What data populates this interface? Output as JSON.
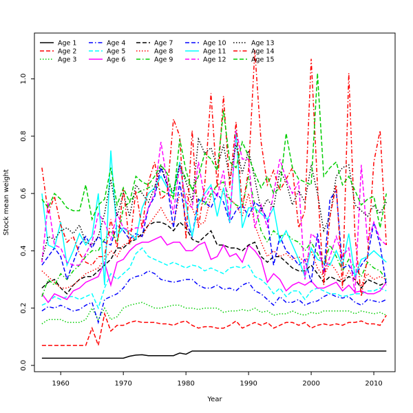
{
  "chart_data": {
    "type": "line",
    "title": "",
    "xlabel": "Year",
    "ylabel": "Stock mean weight",
    "xlim": [
      1955.8,
      2013.4
    ],
    "ylim": [
      -0.022,
      1.16
    ],
    "xticks": [
      1960,
      1970,
      1980,
      1990,
      2000,
      2010
    ],
    "yticks": [
      0.0,
      0.2,
      0.4,
      0.6,
      0.8,
      1.0
    ],
    "yticklabels": [
      "0.0",
      "0.2",
      "0.4",
      "0.6",
      "0.8",
      "1.0"
    ],
    "grid": false,
    "legend_position": "top-left",
    "x": [
      1957,
      1958,
      1959,
      1960,
      1961,
      1962,
      1963,
      1964,
      1965,
      1966,
      1967,
      1968,
      1969,
      1970,
      1971,
      1972,
      1973,
      1974,
      1975,
      1976,
      1977,
      1978,
      1979,
      1980,
      1981,
      1982,
      1983,
      1984,
      1985,
      1986,
      1987,
      1988,
      1989,
      1990,
      1991,
      1992,
      1993,
      1994,
      1995,
      1996,
      1997,
      1998,
      1999,
      2000,
      2001,
      2002,
      2003,
      2004,
      2005,
      2006,
      2007,
      2008,
      2009,
      2010,
      2011,
      2012
    ],
    "series": [
      {
        "name": "Age 1",
        "color": "#000000",
        "dash": "solid",
        "values": [
          0.025,
          0.025,
          0.025,
          0.025,
          0.025,
          0.025,
          0.025,
          0.025,
          0.025,
          0.025,
          0.025,
          0.025,
          0.025,
          0.025,
          0.032,
          0.036,
          0.037,
          0.034,
          0.034,
          0.034,
          0.034,
          0.034,
          0.043,
          0.039,
          0.05,
          0.05,
          0.05,
          0.05,
          0.05,
          0.05,
          0.05,
          0.05,
          0.05,
          0.05,
          0.05,
          0.05,
          0.05,
          0.05,
          0.05,
          0.05,
          0.05,
          0.05,
          0.05,
          0.05,
          0.05,
          0.05,
          0.05,
          0.05,
          0.05,
          0.05,
          0.05,
          0.05,
          0.05,
          0.05,
          0.05,
          0.05
        ]
      },
      {
        "name": "Age 2",
        "color": "#ff0000",
        "dash": "dashed",
        "values": [
          0.07,
          0.07,
          0.07,
          0.07,
          0.07,
          0.07,
          0.07,
          0.07,
          0.13,
          0.07,
          0.18,
          0.12,
          0.14,
          0.14,
          0.15,
          0.155,
          0.15,
          0.15,
          0.15,
          0.145,
          0.145,
          0.14,
          0.15,
          0.155,
          0.14,
          0.13,
          0.135,
          0.135,
          0.13,
          0.13,
          0.14,
          0.155,
          0.13,
          0.14,
          0.15,
          0.14,
          0.15,
          0.13,
          0.14,
          0.15,
          0.15,
          0.14,
          0.15,
          0.13,
          0.14,
          0.145,
          0.14,
          0.145,
          0.14,
          0.15,
          0.15,
          0.155,
          0.145,
          0.145,
          0.14,
          0.175
        ]
      },
      {
        "name": "Age 3",
        "color": "#00cd00",
        "dash": "dotted",
        "values": [
          0.145,
          0.16,
          0.16,
          0.16,
          0.15,
          0.15,
          0.15,
          0.16,
          0.2,
          0.16,
          0.2,
          0.16,
          0.17,
          0.2,
          0.21,
          0.215,
          0.22,
          0.21,
          0.2,
          0.2,
          0.205,
          0.21,
          0.21,
          0.2,
          0.2,
          0.195,
          0.2,
          0.2,
          0.2,
          0.185,
          0.19,
          0.19,
          0.195,
          0.19,
          0.2,
          0.185,
          0.19,
          0.175,
          0.18,
          0.18,
          0.19,
          0.18,
          0.175,
          0.185,
          0.18,
          0.19,
          0.19,
          0.19,
          0.19,
          0.19,
          0.18,
          0.19,
          0.185,
          0.18,
          0.185,
          0.175
        ]
      },
      {
        "name": "Age 4",
        "color": "#0000ff",
        "dash": "dashdot",
        "values": [
          0.19,
          0.205,
          0.2,
          0.21,
          0.2,
          0.19,
          0.195,
          0.21,
          0.22,
          0.15,
          0.23,
          0.24,
          0.25,
          0.27,
          0.3,
          0.31,
          0.315,
          0.33,
          0.32,
          0.3,
          0.295,
          0.29,
          0.295,
          0.3,
          0.3,
          0.28,
          0.27,
          0.27,
          0.28,
          0.265,
          0.27,
          0.26,
          0.28,
          0.29,
          0.26,
          0.25,
          0.23,
          0.21,
          0.24,
          0.22,
          0.22,
          0.23,
          0.21,
          0.22,
          0.225,
          0.24,
          0.25,
          0.24,
          0.235,
          0.24,
          0.22,
          0.21,
          0.23,
          0.225,
          0.22,
          0.23
        ]
      },
      {
        "name": "Age 5",
        "color": "#00ffff",
        "dash": "dashed",
        "values": [
          0.21,
          0.22,
          0.24,
          0.23,
          0.24,
          0.24,
          0.23,
          0.24,
          0.25,
          0.2,
          0.27,
          0.32,
          0.3,
          0.32,
          0.34,
          0.39,
          0.41,
          0.38,
          0.37,
          0.36,
          0.35,
          0.36,
          0.35,
          0.34,
          0.35,
          0.345,
          0.33,
          0.34,
          0.33,
          0.32,
          0.34,
          0.345,
          0.34,
          0.35,
          0.31,
          0.3,
          0.28,
          0.25,
          0.27,
          0.24,
          0.26,
          0.26,
          0.23,
          0.26,
          0.27,
          0.26,
          0.25,
          0.25,
          0.24,
          0.245,
          0.25,
          0.25,
          0.26,
          0.26,
          0.27,
          0.26
        ]
      },
      {
        "name": "Age 6",
        "color": "#ff00ff",
        "dash": "solid",
        "values": [
          0.25,
          0.22,
          0.25,
          0.24,
          0.23,
          0.26,
          0.27,
          0.29,
          0.3,
          0.31,
          0.36,
          0.28,
          0.36,
          0.37,
          0.4,
          0.42,
          0.43,
          0.43,
          0.44,
          0.45,
          0.42,
          0.43,
          0.43,
          0.4,
          0.4,
          0.42,
          0.43,
          0.37,
          0.38,
          0.42,
          0.38,
          0.39,
          0.36,
          0.42,
          0.4,
          0.37,
          0.29,
          0.32,
          0.3,
          0.26,
          0.28,
          0.29,
          0.28,
          0.295,
          0.27,
          0.27,
          0.28,
          0.29,
          0.26,
          0.28,
          0.255,
          0.26,
          0.25,
          0.25,
          0.26,
          0.29
        ]
      },
      {
        "name": "Age 7",
        "color": "#000000",
        "dash": "dashed",
        "values": [
          0.27,
          0.29,
          0.3,
          0.27,
          0.25,
          0.28,
          0.3,
          0.31,
          0.31,
          0.33,
          0.35,
          0.37,
          0.41,
          0.41,
          0.43,
          0.44,
          0.46,
          0.49,
          0.5,
          0.5,
          0.49,
          0.47,
          0.5,
          0.48,
          0.44,
          0.43,
          0.45,
          0.47,
          0.42,
          0.42,
          0.41,
          0.41,
          0.4,
          0.42,
          0.43,
          0.38,
          0.36,
          0.38,
          0.38,
          0.36,
          0.34,
          0.33,
          0.33,
          0.35,
          0.32,
          0.29,
          0.31,
          0.3,
          0.29,
          0.31,
          0.3,
          0.27,
          0.3,
          0.29,
          0.28,
          0.29
        ]
      },
      {
        "name": "Age 8",
        "color": "#ff0000",
        "dash": "dotted",
        "values": [
          0.33,
          0.31,
          0.29,
          0.27,
          0.27,
          0.28,
          0.3,
          0.32,
          0.33,
          0.34,
          0.37,
          0.4,
          0.38,
          0.42,
          0.43,
          0.45,
          0.45,
          0.49,
          0.52,
          0.55,
          0.51,
          0.49,
          0.6,
          0.6,
          0.55,
          0.49,
          0.5,
          0.59,
          0.63,
          0.6,
          0.58,
          0.56,
          0.52,
          0.6,
          0.49,
          0.43,
          0.38,
          0.4,
          0.38,
          0.39,
          0.37,
          0.38,
          0.36,
          0.4,
          0.34,
          0.31,
          0.36,
          0.33,
          0.29,
          0.33,
          0.3,
          0.28,
          0.32,
          0.3,
          0.31,
          0.3
        ]
      },
      {
        "name": "Age 9",
        "color": "#00cd00",
        "dash": "dashdot",
        "values": [
          0.24,
          0.3,
          0.28,
          0.32,
          0.3,
          0.33,
          0.35,
          0.38,
          0.4,
          0.4,
          0.44,
          0.47,
          0.43,
          0.55,
          0.57,
          0.6,
          0.61,
          0.62,
          0.63,
          0.61,
          0.6,
          0.59,
          0.7,
          0.65,
          0.62,
          0.58,
          0.56,
          0.6,
          0.63,
          0.64,
          0.58,
          0.56,
          0.55,
          0.66,
          0.56,
          0.47,
          0.43,
          0.47,
          0.45,
          0.46,
          0.44,
          0.43,
          0.4,
          0.43,
          0.39,
          0.35,
          0.42,
          0.38,
          0.33,
          0.37,
          0.34,
          0.31,
          0.36,
          0.34,
          0.33,
          0.3
        ]
      },
      {
        "name": "Age 10",
        "color": "#0000ff",
        "dash": "dashed",
        "values": [
          0.35,
          0.38,
          0.41,
          0.38,
          0.3,
          0.36,
          0.42,
          0.45,
          0.41,
          0.45,
          0.43,
          0.42,
          0.49,
          0.47,
          0.44,
          0.46,
          0.45,
          0.55,
          0.59,
          0.69,
          0.63,
          0.48,
          0.64,
          0.5,
          0.45,
          0.58,
          0.57,
          0.55,
          0.6,
          0.57,
          0.5,
          0.54,
          0.56,
          0.52,
          0.57,
          0.55,
          0.51,
          0.35,
          0.45,
          0.4,
          0.38,
          0.35,
          0.37,
          0.29,
          0.46,
          0.32,
          0.58,
          0.61,
          0.34,
          0.35,
          0.31,
          0.35,
          0.38,
          0.5,
          0.42,
          0.28
        ]
      },
      {
        "name": "Age 11",
        "color": "#00ffff",
        "dash": "solid",
        "values": [
          0.6,
          0.42,
          0.41,
          0.5,
          0.35,
          0.4,
          0.46,
          0.42,
          0.45,
          0.6,
          0.28,
          0.75,
          0.45,
          0.48,
          0.46,
          0.44,
          0.55,
          0.6,
          0.62,
          0.66,
          0.62,
          0.6,
          0.71,
          0.56,
          0.45,
          0.56,
          0.6,
          0.63,
          0.52,
          0.62,
          0.5,
          0.82,
          0.48,
          0.55,
          0.55,
          0.53,
          0.51,
          0.55,
          0.43,
          0.47,
          0.42,
          0.37,
          0.31,
          0.41,
          0.37,
          0.36,
          0.35,
          0.4,
          0.35,
          0.46,
          0.31,
          0.37,
          0.38,
          0.4,
          0.38,
          0.36
        ]
      },
      {
        "name": "Age 12",
        "color": "#ff00ff",
        "dash": "dashed",
        "values": [
          0.36,
          0.57,
          0.42,
          0.41,
          0.36,
          0.35,
          0.35,
          0.39,
          0.43,
          0.53,
          0.5,
          0.44,
          0.53,
          0.48,
          0.47,
          0.48,
          0.48,
          0.55,
          0.6,
          0.78,
          0.64,
          0.53,
          0.7,
          0.57,
          0.55,
          0.71,
          0.58,
          0.62,
          0.59,
          0.68,
          0.51,
          0.82,
          0.72,
          0.72,
          0.48,
          0.56,
          0.48,
          0.6,
          0.72,
          0.65,
          0.6,
          0.64,
          0.3,
          0.46,
          0.44,
          0.32,
          0.38,
          0.45,
          0.38,
          0.41,
          0.25,
          0.7,
          0.43,
          0.5,
          0.44,
          0.42
        ]
      },
      {
        "name": "Age 13",
        "color": "#000000",
        "dash": "dotted",
        "values": [
          0.37,
          0.45,
          0.44,
          0.47,
          0.48,
          0.46,
          0.49,
          0.43,
          0.42,
          0.45,
          0.53,
          0.65,
          0.52,
          0.6,
          0.52,
          0.63,
          0.6,
          0.57,
          0.62,
          0.7,
          0.63,
          0.61,
          0.7,
          0.64,
          0.57,
          0.79,
          0.74,
          0.76,
          0.69,
          0.77,
          0.65,
          0.77,
          0.67,
          0.75,
          0.65,
          0.54,
          0.58,
          0.55,
          0.68,
          0.64,
          0.56,
          0.61,
          0.57,
          0.7,
          0.6,
          0.47,
          0.52,
          0.66,
          0.69,
          0.7,
          0.56,
          0.54,
          0.52,
          0.56,
          0.53,
          0.57
        ]
      },
      {
        "name": "Age 14",
        "color": "#ff0000",
        "dash": "dashdot",
        "values": [
          0.69,
          0.53,
          0.59,
          0.49,
          0.43,
          0.45,
          0.39,
          0.36,
          0.35,
          0.38,
          0.38,
          0.51,
          0.41,
          0.62,
          0.42,
          0.61,
          0.48,
          0.64,
          0.71,
          0.58,
          0.6,
          0.86,
          0.8,
          0.44,
          0.82,
          0.48,
          0.63,
          0.95,
          0.62,
          0.94,
          0.62,
          0.85,
          0.55,
          0.68,
          1.1,
          0.78,
          0.63,
          0.68,
          0.61,
          0.65,
          0.69,
          0.48,
          0.54,
          1.07,
          0.63,
          0.28,
          0.52,
          0.63,
          0.27,
          1.02,
          0.45,
          0.24,
          0.38,
          0.71,
          0.82,
          0.42
        ]
      },
      {
        "name": "Age 15",
        "color": "#00cd00",
        "dash": "dashed",
        "values": [
          0.58,
          0.55,
          0.6,
          0.58,
          0.55,
          0.54,
          0.54,
          0.63,
          0.51,
          0.56,
          0.58,
          0.69,
          0.56,
          0.62,
          0.57,
          0.66,
          0.64,
          0.63,
          0.66,
          0.7,
          0.67,
          0.58,
          0.79,
          0.68,
          0.61,
          0.66,
          0.74,
          0.72,
          0.68,
          0.89,
          0.71,
          0.69,
          0.78,
          0.73,
          0.67,
          0.62,
          0.66,
          0.6,
          0.62,
          0.81,
          0.69,
          0.65,
          0.64,
          0.63,
          1.02,
          0.66,
          0.69,
          0.71,
          0.63,
          0.66,
          0.61,
          0.56,
          0.58,
          0.59,
          0.48,
          0.6
        ]
      }
    ]
  }
}
